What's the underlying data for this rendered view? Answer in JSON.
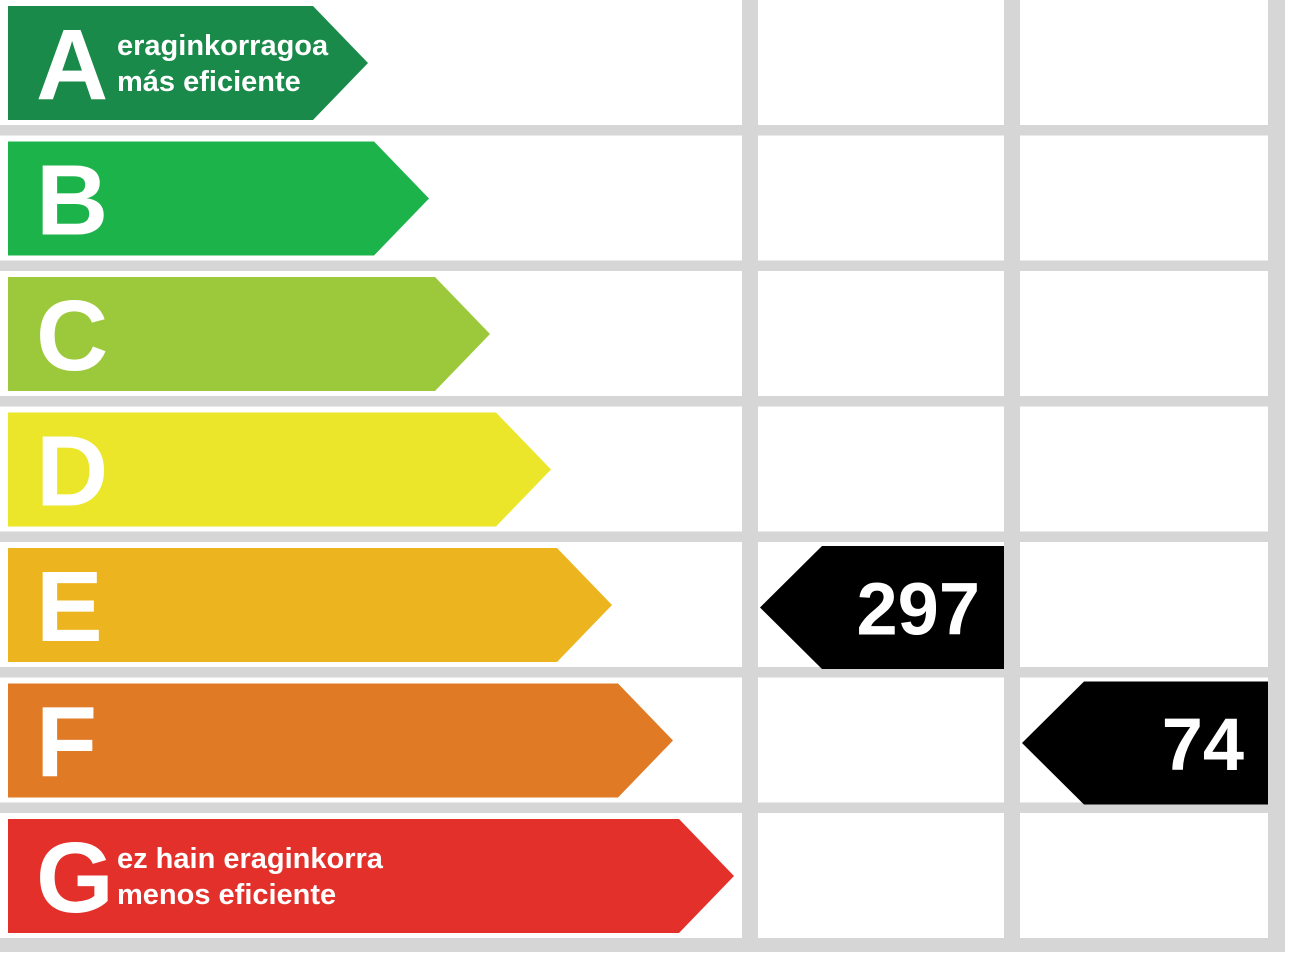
{
  "rating_rows": [
    {
      "letter": "A",
      "line1": "eraginkorragoa",
      "line2": "más eficiente",
      "color": "#1a8a4a"
    },
    {
      "letter": "B",
      "color": "#1db34b"
    },
    {
      "letter": "C",
      "color": "#9cc93b"
    },
    {
      "letter": "D",
      "color": "#ebe62a"
    },
    {
      "letter": "E",
      "color": "#ecb41f"
    },
    {
      "letter": "F",
      "color": "#e07a25"
    },
    {
      "letter": "G",
      "line1": "ez hain eraginkorra",
      "line2": "menos eficiente",
      "color": "#e3302a"
    }
  ],
  "consumption_rating": {
    "value": 297,
    "rating": "E"
  },
  "emissions_rating": {
    "value": 74,
    "rating": "F"
  }
}
